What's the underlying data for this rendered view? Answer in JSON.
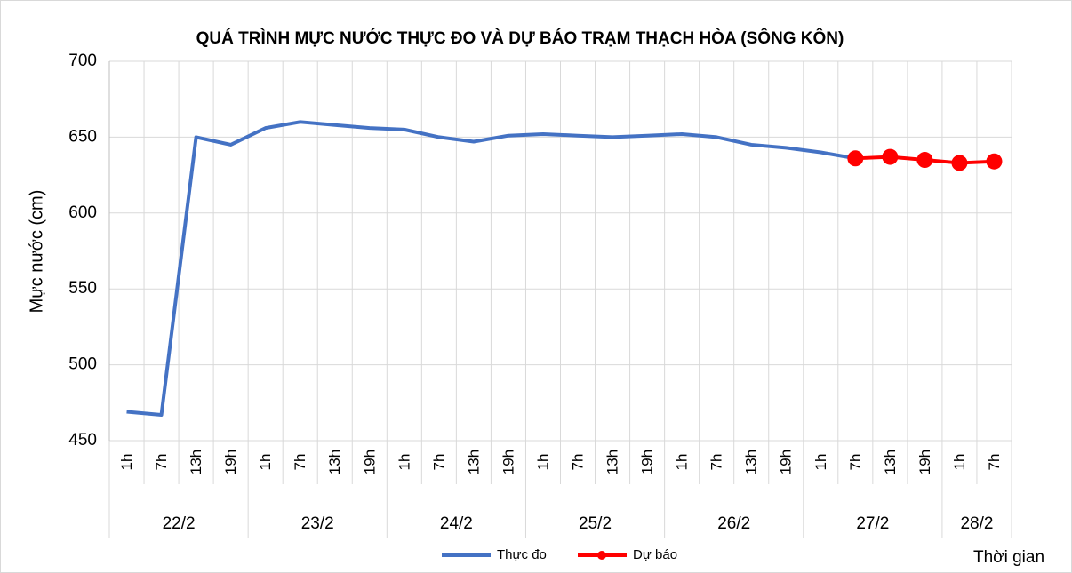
{
  "chart_data": {
    "type": "line",
    "title": "QUÁ TRÌNH MỰC NƯỚC THỰC ĐO VÀ DỰ BÁO TRẠM THẠCH HÒA (SÔNG KÔN)",
    "y_label": "Mực nước (cm)",
    "x_label": "Thời gian",
    "category_groups": [
      {
        "label": "22/2",
        "categories": [
          "1h",
          "7h",
          "13h",
          "19h"
        ]
      },
      {
        "label": "23/2",
        "categories": [
          "1h",
          "7h",
          "13h",
          "19h"
        ]
      },
      {
        "label": "24/2",
        "categories": [
          "1h",
          "7h",
          "13h",
          "19h"
        ]
      },
      {
        "label": "25/2",
        "categories": [
          "1h",
          "7h",
          "13h",
          "19h"
        ]
      },
      {
        "label": "26/2",
        "categories": [
          "1h",
          "7h",
          "13h",
          "19h"
        ]
      },
      {
        "label": "27/2",
        "categories": [
          "1h",
          "7h",
          "13h",
          "19h"
        ]
      },
      {
        "label": "28/2",
        "categories": [
          "1h",
          "7h"
        ]
      }
    ],
    "series": [
      {
        "name": "Thực đo",
        "color": "#4472c4",
        "marker": false,
        "values": [
          469,
          467,
          650,
          645,
          656,
          660,
          658,
          656,
          655,
          650,
          647,
          651,
          652,
          651,
          650,
          651,
          652,
          650,
          645,
          643,
          640,
          636,
          null,
          null,
          null,
          null
        ]
      },
      {
        "name": "Dự báo",
        "color": "#ff0000",
        "marker": true,
        "values": [
          null,
          null,
          null,
          null,
          null,
          null,
          null,
          null,
          null,
          null,
          null,
          null,
          null,
          null,
          null,
          null,
          null,
          null,
          null,
          null,
          null,
          636,
          637,
          635,
          633,
          634
        ]
      }
    ],
    "ylim": [
      450,
      700
    ],
    "yticks": [
      450,
      500,
      550,
      600,
      650,
      700
    ],
    "grid": true
  }
}
